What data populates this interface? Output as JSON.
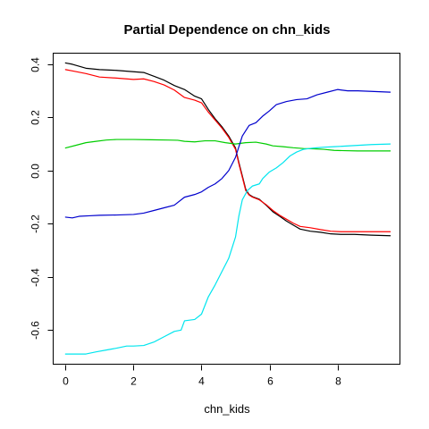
{
  "chart_data": {
    "type": "line",
    "title": "Partial Dependence on chn_kids",
    "xlabel": "chn_kids",
    "ylabel": "",
    "xlim": [
      -0.35,
      9.85
    ],
    "ylim": [
      -0.73,
      0.44
    ],
    "xticks": [
      0,
      2,
      4,
      6,
      8
    ],
    "yticks": [
      -0.6,
      -0.4,
      -0.2,
      0.0,
      0.2,
      0.4
    ],
    "ytick_labels": [
      "-0.6",
      "-0.4",
      "-0.2",
      "0.0",
      "0.2",
      "0.4"
    ],
    "xtick_labels": [
      "0",
      "2",
      "4",
      "6",
      "8"
    ],
    "grid": false,
    "legend": "none",
    "series": [
      {
        "color": "#000000",
        "x": [
          0.0,
          0.2,
          0.6,
          1.0,
          1.5,
          2.0,
          2.3,
          2.6,
          2.9,
          3.2,
          3.5,
          3.8,
          4.0,
          4.2,
          4.4,
          4.6,
          4.8,
          5.0,
          5.1,
          5.2,
          5.3,
          5.4,
          5.5,
          5.7,
          5.9,
          6.1,
          6.3,
          6.5,
          6.7,
          6.9,
          7.2,
          7.5,
          7.8,
          8.1,
          8.5,
          9.0,
          9.55
        ],
        "y": [
          0.405,
          0.4,
          0.385,
          0.38,
          0.377,
          0.372,
          0.369,
          0.355,
          0.34,
          0.32,
          0.305,
          0.28,
          0.27,
          0.23,
          0.195,
          0.165,
          0.13,
          0.085,
          0.03,
          -0.02,
          -0.07,
          -0.09,
          -0.098,
          -0.108,
          -0.13,
          -0.155,
          -0.172,
          -0.19,
          -0.205,
          -0.22,
          -0.228,
          -0.232,
          -0.238,
          -0.24,
          -0.24,
          -0.243,
          -0.245
        ]
      },
      {
        "color": "#ff0000",
        "x": [
          0.0,
          0.2,
          0.6,
          1.0,
          1.5,
          2.0,
          2.3,
          2.6,
          2.9,
          3.2,
          3.5,
          3.8,
          4.0,
          4.2,
          4.4,
          4.6,
          4.8,
          5.0,
          5.1,
          5.2,
          5.3,
          5.4,
          5.5,
          5.7,
          5.9,
          6.1,
          6.3,
          6.5,
          6.7,
          6.9,
          7.2,
          7.5,
          7.8,
          8.1,
          8.5,
          9.0,
          9.55
        ],
        "y": [
          0.38,
          0.375,
          0.365,
          0.352,
          0.348,
          0.343,
          0.345,
          0.335,
          0.322,
          0.303,
          0.275,
          0.265,
          0.255,
          0.22,
          0.19,
          0.16,
          0.125,
          0.08,
          0.025,
          -0.025,
          -0.075,
          -0.092,
          -0.1,
          -0.11,
          -0.128,
          -0.15,
          -0.168,
          -0.183,
          -0.198,
          -0.21,
          -0.215,
          -0.222,
          -0.228,
          -0.23,
          -0.23,
          -0.23,
          -0.23
        ]
      },
      {
        "color": "#00cd00",
        "x": [
          0.0,
          0.3,
          0.6,
          0.9,
          1.2,
          1.5,
          2.0,
          2.5,
          3.0,
          3.3,
          3.5,
          3.8,
          4.1,
          4.4,
          4.7,
          5.0,
          5.3,
          5.6,
          5.9,
          6.1,
          6.4,
          6.7,
          7.0,
          7.3,
          7.6,
          7.9,
          8.2,
          8.6,
          9.0,
          9.55
        ],
        "y": [
          0.085,
          0.095,
          0.105,
          0.11,
          0.115,
          0.117,
          0.117,
          0.116,
          0.115,
          0.114,
          0.11,
          0.108,
          0.112,
          0.112,
          0.105,
          0.1,
          0.105,
          0.107,
          0.1,
          0.093,
          0.09,
          0.086,
          0.083,
          0.082,
          0.08,
          0.076,
          0.075,
          0.074,
          0.074,
          0.074
        ]
      },
      {
        "color": "#0000cd",
        "x": [
          0.0,
          0.2,
          0.4,
          0.7,
          1.0,
          1.5,
          2.0,
          2.3,
          2.6,
          2.9,
          3.2,
          3.5,
          3.8,
          4.0,
          4.2,
          4.4,
          4.6,
          4.8,
          5.0,
          5.1,
          5.2,
          5.4,
          5.6,
          5.8,
          6.0,
          6.2,
          6.5,
          6.8,
          7.1,
          7.4,
          7.7,
          8.0,
          8.3,
          8.6,
          9.0,
          9.55
        ],
        "y": [
          -0.175,
          -0.178,
          -0.172,
          -0.17,
          -0.168,
          -0.167,
          -0.165,
          -0.16,
          -0.15,
          -0.14,
          -0.13,
          -0.1,
          -0.09,
          -0.08,
          -0.063,
          -0.05,
          -0.03,
          0.0,
          0.05,
          0.09,
          0.13,
          0.17,
          0.18,
          0.205,
          0.225,
          0.248,
          0.26,
          0.267,
          0.27,
          0.285,
          0.295,
          0.305,
          0.3,
          0.3,
          0.298,
          0.295
        ]
      },
      {
        "color": "#00e5ee",
        "x": [
          0.0,
          0.3,
          0.6,
          0.9,
          1.2,
          1.5,
          1.8,
          2.0,
          2.3,
          2.6,
          2.9,
          3.2,
          3.4,
          3.5,
          3.8,
          4.0,
          4.2,
          4.4,
          4.6,
          4.8,
          5.0,
          5.1,
          5.2,
          5.35,
          5.5,
          5.7,
          5.8,
          6.0,
          6.2,
          6.4,
          6.6,
          6.8,
          7.0,
          7.3,
          7.6,
          7.9,
          8.2,
          8.6,
          9.0,
          9.55
        ],
        "y": [
          -0.69,
          -0.69,
          -0.69,
          -0.682,
          -0.675,
          -0.668,
          -0.66,
          -0.66,
          -0.658,
          -0.645,
          -0.625,
          -0.605,
          -0.6,
          -0.565,
          -0.56,
          -0.54,
          -0.475,
          -0.43,
          -0.38,
          -0.33,
          -0.25,
          -0.17,
          -0.11,
          -0.075,
          -0.058,
          -0.05,
          -0.03,
          -0.005,
          0.01,
          0.03,
          0.055,
          0.07,
          0.08,
          0.085,
          0.088,
          0.09,
          0.092,
          0.095,
          0.098,
          0.1
        ]
      }
    ]
  }
}
